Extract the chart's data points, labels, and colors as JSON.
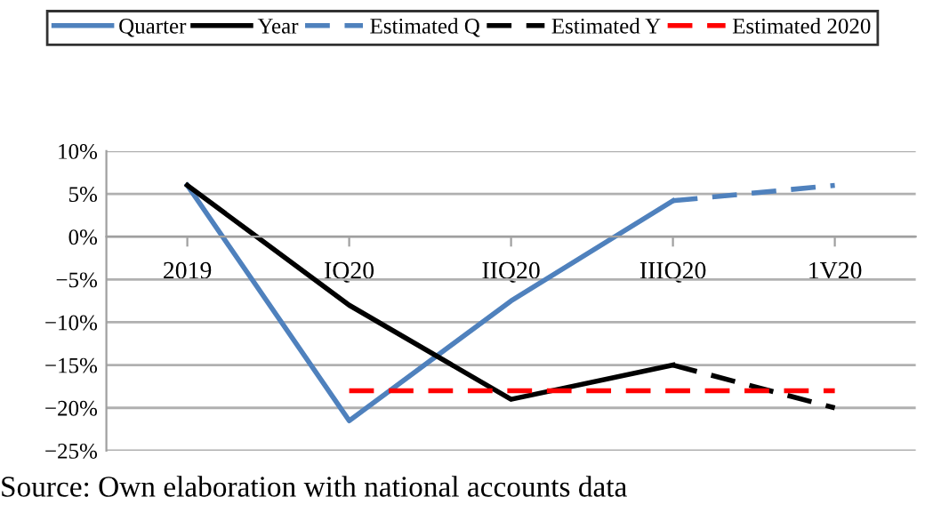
{
  "chart_data": {
    "type": "line",
    "categories": [
      "2019",
      "IQ20",
      "IIQ20",
      "IIIQ20",
      "1V20"
    ],
    "series": [
      {
        "name": "Quarter",
        "color": "#4f81bd",
        "line_style": "solid",
        "values": [
          6,
          -21.5,
          -7.5,
          4.2,
          null
        ]
      },
      {
        "name": "Year",
        "color": "#000000",
        "line_style": "solid",
        "values": [
          6,
          -8,
          -19,
          -15,
          null
        ]
      },
      {
        "name": "Estimated Q",
        "color": "#4f81bd",
        "line_style": "dashed",
        "values": [
          null,
          null,
          null,
          4.2,
          6
        ]
      },
      {
        "name": "Estimated Y",
        "color": "#000000",
        "line_style": "dashed",
        "values": [
          null,
          null,
          null,
          -15,
          -20
        ]
      },
      {
        "name": "Estimated 2020",
        "color": "#ff0000",
        "line_style": "dashed",
        "values": [
          null,
          -18,
          -18,
          -18,
          -18
        ]
      }
    ],
    "ylim": [
      -25,
      10
    ],
    "yticks": [
      {
        "value": -25,
        "label": "−25%"
      },
      {
        "value": -20,
        "label": "−20%"
      },
      {
        "value": -15,
        "label": "−15%"
      },
      {
        "value": -10,
        "label": "−10%"
      },
      {
        "value": -5,
        "label": "−5%"
      },
      {
        "value": 0,
        "label": "0%"
      },
      {
        "value": 5,
        "label": "5%"
      },
      {
        "value": 10,
        "label": "10%"
      }
    ],
    "grid": "y",
    "legend": "top",
    "marker": "none",
    "annotations": [
      "Source: Own elaboration with national accounts data"
    ]
  }
}
